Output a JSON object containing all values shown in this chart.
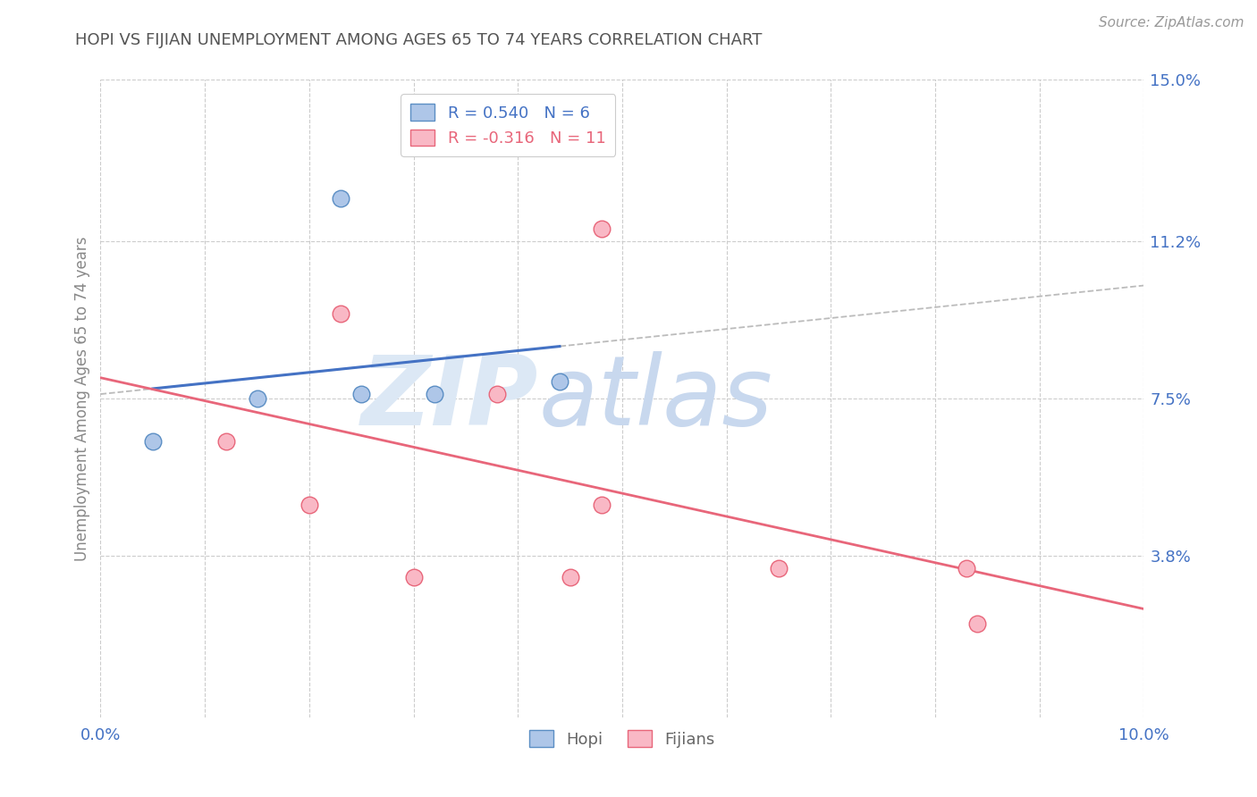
{
  "title": "HOPI VS FIJIAN UNEMPLOYMENT AMONG AGES 65 TO 74 YEARS CORRELATION CHART",
  "source": "Source: ZipAtlas.com",
  "ylabel": "Unemployment Among Ages 65 to 74 years",
  "xlim": [
    0.0,
    0.1
  ],
  "ylim": [
    0.0,
    0.15
  ],
  "ytick_labels": [
    "3.8%",
    "7.5%",
    "11.2%",
    "15.0%"
  ],
  "ytick_values": [
    0.038,
    0.075,
    0.112,
    0.15
  ],
  "xtick_labels": [
    "0.0%",
    "",
    "",
    "",
    "",
    "",
    "",
    "",
    "",
    "",
    "10.0%"
  ],
  "xtick_values": [
    0.0,
    0.01,
    0.02,
    0.03,
    0.04,
    0.05,
    0.06,
    0.07,
    0.08,
    0.09,
    0.1
  ],
  "hopi_x": [
    0.005,
    0.015,
    0.023,
    0.025,
    0.032,
    0.044
  ],
  "hopi_y": [
    0.065,
    0.075,
    0.122,
    0.076,
    0.076,
    0.079
  ],
  "fijian_x": [
    0.012,
    0.02,
    0.023,
    0.03,
    0.038,
    0.045,
    0.048,
    0.048,
    0.065,
    0.083,
    0.084
  ],
  "fijian_y": [
    0.065,
    0.05,
    0.095,
    0.033,
    0.076,
    0.033,
    0.115,
    0.05,
    0.035,
    0.035,
    0.022
  ],
  "hopi_color": "#aec6e8",
  "fijian_color": "#f9b8c5",
  "hopi_edge_color": "#5b8ec4",
  "fijian_edge_color": "#e8667a",
  "hopi_trend_color": "#4472c4",
  "fijian_trend_color": "#e8667a",
  "hopi_R": 0.54,
  "hopi_N": 6,
  "fijian_R": -0.316,
  "fijian_N": 11,
  "legend_label_hopi": "Hopi",
  "legend_label_fijian": "Fijians",
  "marker_size": 180,
  "background_color": "#ffffff",
  "grid_color": "#cccccc",
  "title_color": "#555555",
  "axis_color": "#4472c4",
  "source_color": "#999999",
  "ylabel_color": "#888888",
  "watermark_zip": "ZIP",
  "watermark_atlas": "atlas",
  "watermark_color": "#dce8f5"
}
